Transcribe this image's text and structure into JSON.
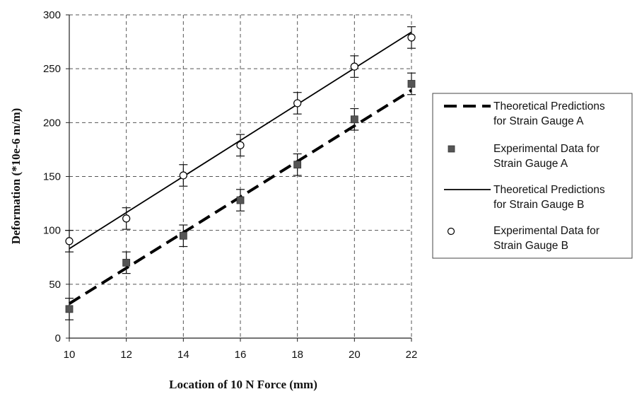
{
  "chart_data": {
    "type": "scatter",
    "title": "",
    "xlabel": "Location of 10 N Force (mm)",
    "ylabel": "Deformation (*10e-6 m/m)",
    "xlim": [
      10,
      22
    ],
    "ylim": [
      0,
      300
    ],
    "x_ticks": [
      10,
      12,
      14,
      16,
      18,
      20,
      22
    ],
    "y_ticks": [
      0,
      50,
      100,
      150,
      200,
      250,
      300
    ],
    "grid": true,
    "legend_position": "right",
    "series": [
      {
        "name": "Theoretical Predictions for Strain Gauge A",
        "legend_lines": [
          "Theoretical Predictions",
          "for Strain Gauge A"
        ],
        "kind": "line",
        "style": "dashed",
        "color": "#000000",
        "x": [
          10,
          22
        ],
        "y": [
          32,
          230
        ]
      },
      {
        "name": "Experimental Data for Strain Gauge A",
        "legend_lines": [
          "Experimental Data for",
          "Strain Gauge A"
        ],
        "kind": "points",
        "marker": "square",
        "color": "#555555",
        "x": [
          10,
          12,
          14,
          16,
          18,
          20,
          22
        ],
        "y": [
          27,
          70,
          95,
          128,
          161,
          203,
          236
        ],
        "error": [
          10,
          10,
          10,
          10,
          10,
          10,
          10
        ]
      },
      {
        "name": "Theoretical Predictions for Strain Gauge B",
        "legend_lines": [
          "Theoretical Predictions",
          "for Strain Gauge B"
        ],
        "kind": "line",
        "style": "solid",
        "color": "#000000",
        "x": [
          10,
          22
        ],
        "y": [
          83,
          284
        ]
      },
      {
        "name": "Experimental Data for Strain Gauge B",
        "legend_lines": [
          "Experimental Data for",
          "Strain Gauge B"
        ],
        "kind": "points",
        "marker": "circle-open",
        "color": "#000000",
        "x": [
          10,
          12,
          14,
          16,
          18,
          20,
          22
        ],
        "y": [
          90,
          111,
          151,
          179,
          218,
          252,
          279
        ],
        "error": [
          10,
          10,
          10,
          10,
          10,
          10,
          10
        ]
      }
    ]
  }
}
